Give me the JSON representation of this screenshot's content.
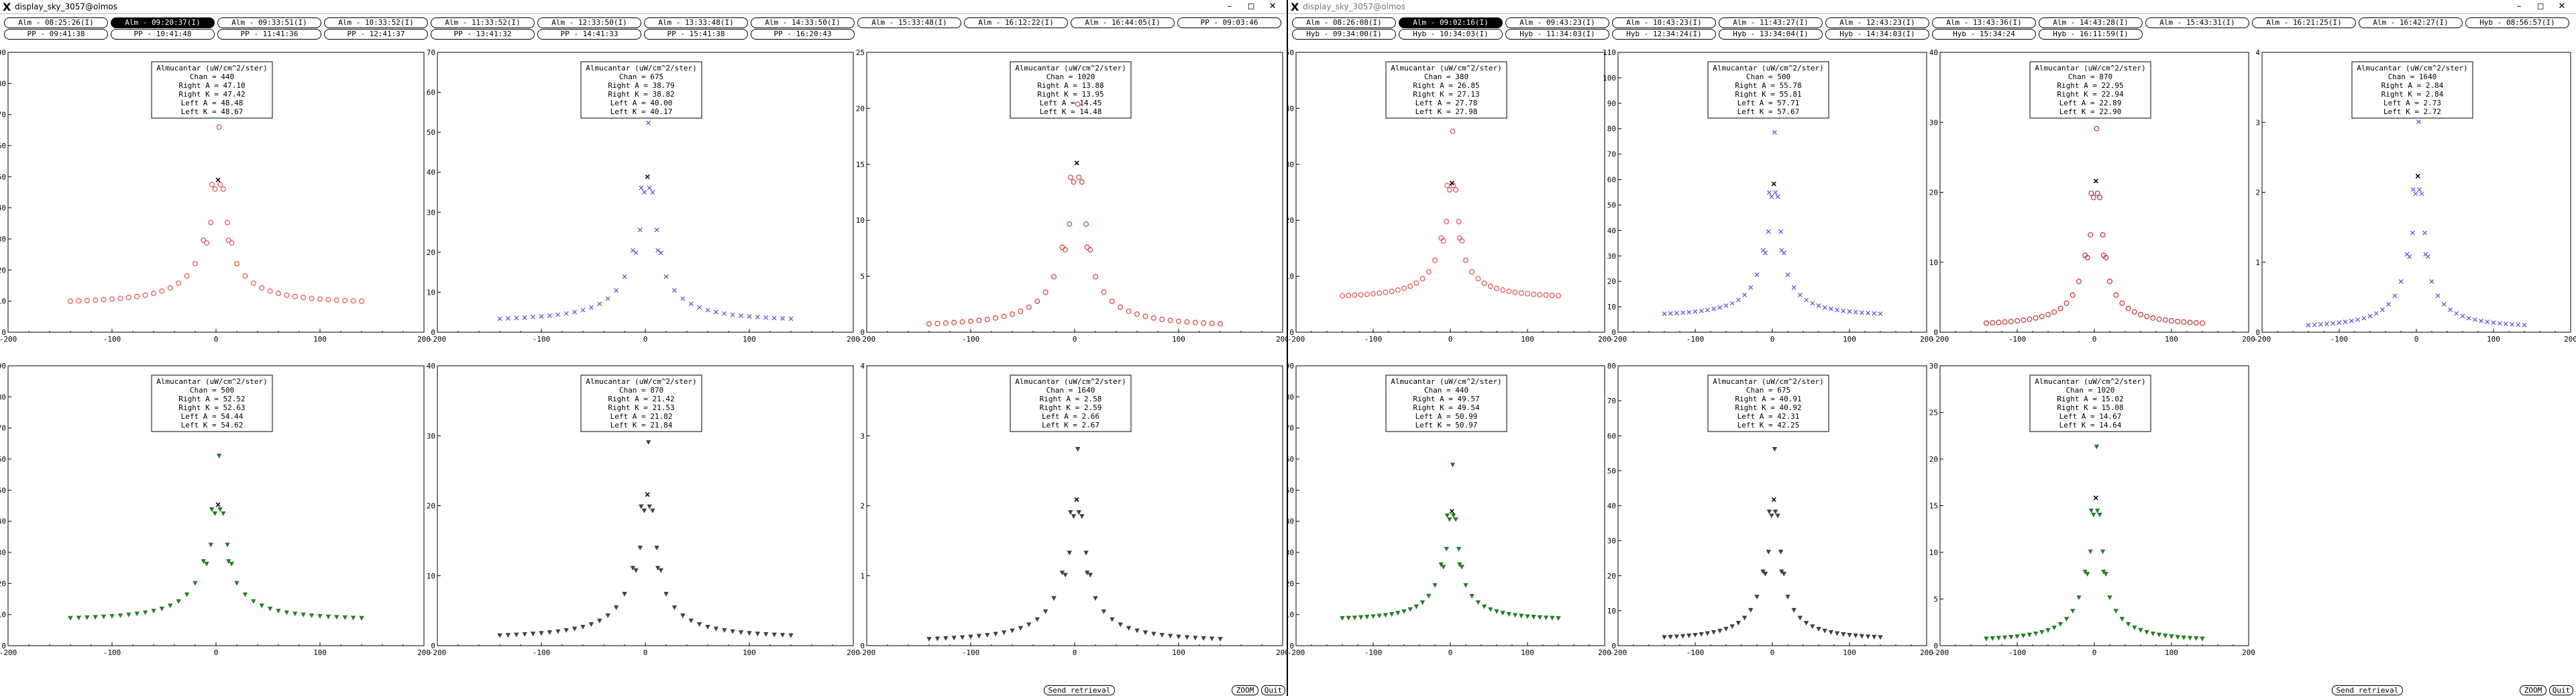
{
  "windows": [
    {
      "title": "display_sky_3057@olmos",
      "title_dim": false,
      "tab_rows": [
        [
          "Alm - 08:25:26(I)",
          "Alm - 09:20:37(I)",
          "Alm - 09:33:51(I)",
          "Alm - 10:33:52(I)",
          "Alm - 11:33:52(I)",
          "Alm - 12:33:50(I)",
          "Alm - 13:33:48(I)",
          "Alm - 14:33:50(I)",
          "Alm - 15:33:48(I)",
          "Alm - 16:12:22(I)",
          "Alm - 16:44:05(I)",
          "PP - 09:03:46"
        ],
        [
          "PP - 09:41:38",
          "PP - 10:41:48",
          "PP - 11:41:36",
          "PP - 12:41:37",
          "PP - 13:41:32",
          "PP - 14:41:33",
          "PP - 15:41:38",
          "PP - 16:20:43"
        ]
      ],
      "selected_tab": "0.1",
      "buttons": {
        "send": "Send retrieval",
        "zoom": "ZOOM",
        "quit": "Quit"
      },
      "plots": [
        {
          "title": "Almucantar (uW/cm^2/ster)",
          "chan": "Chan = 440",
          "right_a": "Right A = 47.10",
          "right_k": "Right K = 47.42",
          "left_a": "Left A = 48.48",
          "left_k": "Left K = 48.67",
          "ymax": 90,
          "color": "#e05050",
          "marker": "circle",
          "peak": 68,
          "base": 9
        },
        {
          "title": "Almucantar (uW/cm^2/ster)",
          "chan": "Chan = 675",
          "right_a": "Right A = 38.79",
          "right_k": "Right K = 38.82",
          "left_a": "Left A = 40.00",
          "left_k": "Left K = 40.17",
          "ymax": 70,
          "color": "#5050e0",
          "marker": "x",
          "peak": 54,
          "base": 2.5
        },
        {
          "title": "Almucantar (uW/cm^2/ster)",
          "chan": "Chan = 1020",
          "right_a": "Right A = 13.88",
          "right_k": "Right K = 13.95",
          "left_a": "Left A = 14.45",
          "left_k": "Left K = 14.48",
          "ymax": 25,
          "color": "#d04040",
          "marker": "circle",
          "peak": 21,
          "base": 0.4
        },
        {
          "title": "Almucantar (uW/cm^2/ster)",
          "chan": "Chan = 500",
          "right_a": "Right A = 52.52",
          "right_k": "Right K = 52.63",
          "left_a": "Left A = 54.44",
          "left_k": "Left K = 54.62",
          "ymax": 90,
          "color": "#208020",
          "marker": "tri",
          "peak": 63,
          "base": 8
        },
        {
          "title": "Almucantar (uW/cm^2/ster)",
          "chan": "Chan = 870",
          "right_a": "Right A = 21.42",
          "right_k": "Right K = 21.53",
          "left_a": "Left A = 21.82",
          "left_k": "Left K = 21.84",
          "ymax": 40,
          "color": "#404040",
          "marker": "tri",
          "peak": 30,
          "base": 1
        },
        {
          "title": "Almucantar (uW/cm^2/ster)",
          "chan": "Chan = 1640",
          "right_a": "Right A = 2.58",
          "right_k": "Right K = 2.59",
          "left_a": "Left A = 2.66",
          "left_k": "Left K = 2.67",
          "ymax": 4,
          "color": "#404040",
          "marker": "tri",
          "peak": 2.9,
          "base": 0.05
        }
      ]
    },
    {
      "title": "display_sky_3057@olmos",
      "title_dim": true,
      "tab_rows": [
        [
          "Alm - 08:26:08(I)",
          "Alm - 09:02:16(I)",
          "Alm - 09:43:23(I)",
          "Alm - 10:43:23(I)",
          "Alm - 11:43:27(I)",
          "Alm - 12:43:23(I)",
          "Alm - 13:43:36(I)",
          "Alm - 14:43:28(I)",
          "Alm - 15:43:31(I)",
          "Alm - 16:21:25(I)",
          "Alm - 16:42:27(I)",
          "Hyb - 08:56:57(I)"
        ],
        [
          "Hyb - 09:34:00(I)",
          "Hyb - 10:34:03(I)",
          "Hyb - 11:34:03(I)",
          "Hyb - 12:34:24(I)",
          "Hyb - 13:34:04(I)",
          "Hyb - 14:34:03(I)",
          "Hyb - 15:34:24",
          "Hyb - 16:11:59(I)"
        ]
      ],
      "selected_tab": "0.1",
      "buttons": {
        "send": "Send retrieval",
        "zoom": "ZOOM",
        "quit": "Quit"
      },
      "plots": [
        {
          "title": "Almucantar (uW/cm^2/ster)",
          "chan": "Chan = 380",
          "right_a": "Right A = 26.85",
          "right_k": "Right K = 27.13",
          "left_a": "Left A = 27.78",
          "left_k": "Left K = 27.98",
          "ymax": 50,
          "color": "#e05050",
          "marker": "circle",
          "peak": 37,
          "base": 6
        },
        {
          "title": "Almucantar (uW/cm^2/ster)",
          "chan": "Chan = 500",
          "right_a": "Right A = 55.78",
          "right_k": "Right K = 55.81",
          "left_a": "Left A = 57.71",
          "left_k": "Left K = 57.67",
          "ymax": 110,
          "color": "#5050e0",
          "marker": "x",
          "peak": 81,
          "base": 6
        },
        {
          "title": "Almucantar (uW/cm^2/ster)",
          "chan": "Chan = 870",
          "right_a": "Right A = 22.95",
          "right_k": "Right K = 22.94",
          "left_a": "Left A = 22.89",
          "left_k": "Left K = 22.90",
          "ymax": 40,
          "color": "#c03030",
          "marker": "circle",
          "peak": 30,
          "base": 0.8
        },
        {
          "title": "Almucantar (uW/cm^2/ster)",
          "chan": "Chan = 1640",
          "right_a": "Right A = 2.84",
          "right_k": "Right K = 2.84",
          "left_a": "Left A = 2.73",
          "left_k": "Left K = 2.72",
          "ymax": 4,
          "color": "#5050e0",
          "marker": "x",
          "peak": 3.1,
          "base": 0.05
        },
        {
          "title": "Almucantar (uW/cm^2/ster)",
          "chan": "Chan = 440",
          "right_a": "Right A = 49.57",
          "right_k": "Right K = 49.54",
          "left_a": "Left A = 50.99",
          "left_k": "Left K = 50.97",
          "ymax": 90,
          "color": "#208020",
          "marker": "tri",
          "peak": 60,
          "base": 8
        },
        {
          "title": "Almucantar (uW/cm^2/ster)",
          "chan": "Chan = 675",
          "right_a": "Right A = 40.91",
          "right_k": "Right K = 40.92",
          "left_a": "Left A = 42.31",
          "left_k": "Left K = 42.25",
          "ymax": 80,
          "color": "#404040",
          "marker": "tri",
          "peak": 58,
          "base": 1.5
        },
        {
          "title": "Almucantar (uW/cm^2/ster)",
          "chan": "Chan = 1020",
          "right_a": "Right A = 15.02",
          "right_k": "Right K = 15.08",
          "left_a": "Left A = 14.67",
          "left_k": "Left K = 14.64",
          "ymax": 30,
          "color": "#208020",
          "marker": "tri",
          "peak": 22,
          "base": 0.4
        }
      ]
    }
  ],
  "x_axis": {
    "ticks": [
      -200,
      -100,
      0,
      100,
      200
    ],
    "xlim": [
      -200,
      200
    ]
  }
}
